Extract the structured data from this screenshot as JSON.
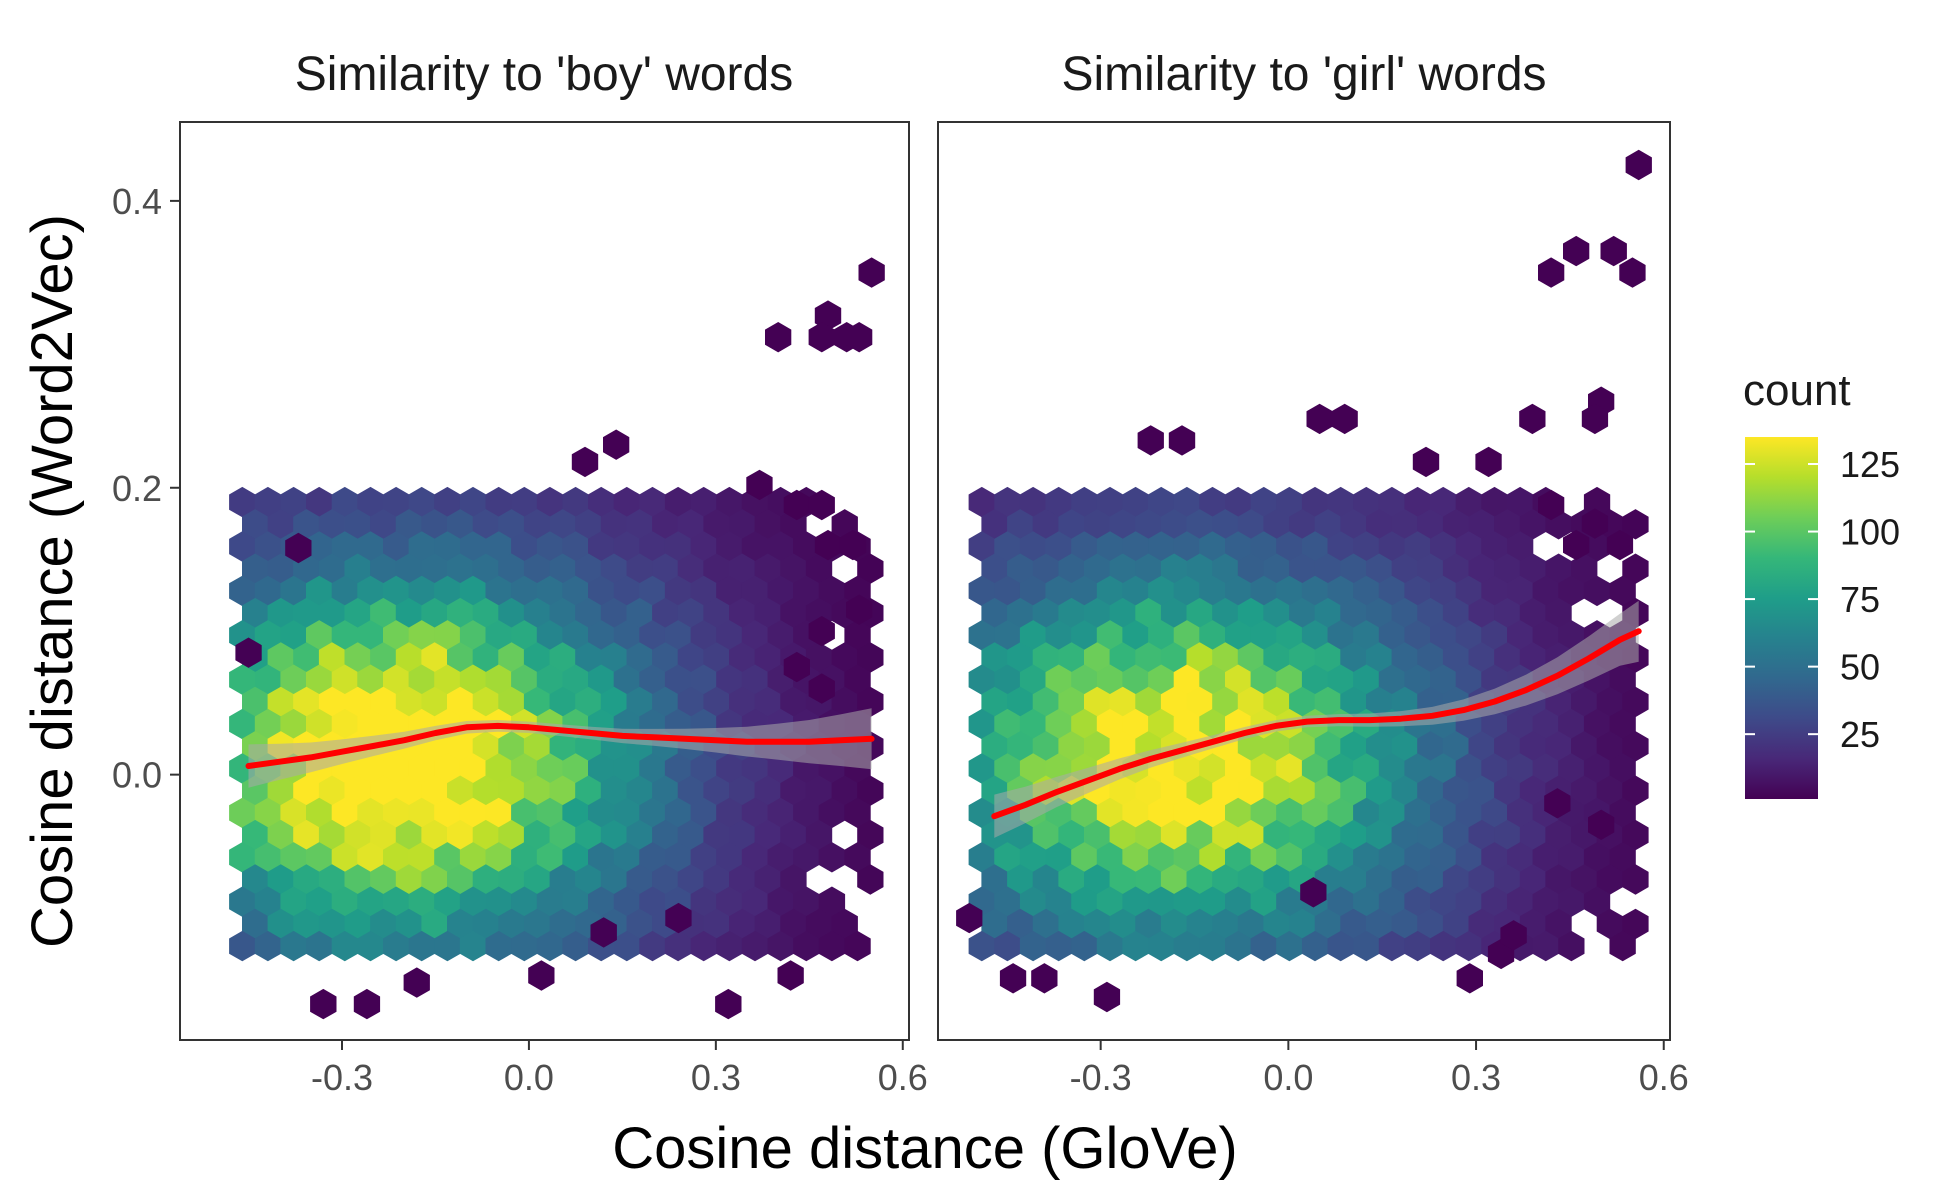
{
  "figure": {
    "xlabel": "Cosine distance (GloVe)",
    "ylabel": "Cosine distance (Word2Vec)"
  },
  "legend": {
    "title": "count",
    "position": "right",
    "range": [
      1,
      135
    ],
    "ticks": [
      25,
      50,
      75,
      100,
      125
    ],
    "ticks_text": [
      "25",
      "50",
      "75",
      "100",
      "125"
    ],
    "palette": [
      "#440154",
      "#482878",
      "#3e4a89",
      "#31688e",
      "#26828e",
      "#1f9e89",
      "#35b779",
      "#6ece58",
      "#b5de2b",
      "#fde725"
    ]
  },
  "chart_data": [
    {
      "type": "hexbin",
      "title": "Similarity to 'boy' words",
      "xlabel": "Cosine distance (GloVe)",
      "ylabel": "Cosine distance (Word2Vec)",
      "xlim": [
        -0.56,
        0.61
      ],
      "ylim": [
        -0.185,
        0.455
      ],
      "x_ticks": [
        -0.3,
        0.0,
        0.3,
        0.6
      ],
      "x_ticks_text": [
        "-0.3",
        "0.0",
        "0.3",
        "0.6"
      ],
      "y_ticks": [
        0.0,
        0.2,
        0.4
      ],
      "y_ticks_text": [
        "0.0",
        "0.2",
        "0.4"
      ],
      "grid": false,
      "density_center": [
        -0.21,
        0.01
      ],
      "density_peak": 125,
      "point_cloud_x_range": [
        -0.46,
        0.56
      ],
      "point_cloud_y_range": [
        -0.14,
        0.35
      ],
      "smooth_line_color": "#ff0000",
      "smooth_line": {
        "x": [
          -0.45,
          -0.4,
          -0.35,
          -0.3,
          -0.25,
          -0.2,
          -0.15,
          -0.1,
          -0.05,
          0.0,
          0.05,
          0.1,
          0.15,
          0.2,
          0.25,
          0.3,
          0.35,
          0.4,
          0.45,
          0.5,
          0.55
        ],
        "y": [
          0.006,
          0.009,
          0.012,
          0.016,
          0.02,
          0.024,
          0.029,
          0.033,
          0.034,
          0.033,
          0.031,
          0.029,
          0.027,
          0.026,
          0.025,
          0.024,
          0.023,
          0.023,
          0.023,
          0.024,
          0.025
        ]
      },
      "outliers": [
        {
          "x": 0.55,
          "y": 0.35
        },
        {
          "x": 0.4,
          "y": 0.305
        },
        {
          "x": 0.48,
          "y": 0.32
        },
        {
          "x": 0.47,
          "y": 0.305
        },
        {
          "x": 0.51,
          "y": 0.305
        },
        {
          "x": 0.53,
          "y": 0.305
        },
        {
          "x": 0.14,
          "y": 0.23
        },
        {
          "x": 0.09,
          "y": 0.218
        },
        {
          "x": 0.37,
          "y": 0.202
        },
        {
          "x": 0.43,
          "y": 0.188
        },
        {
          "x": 0.47,
          "y": 0.188
        },
        {
          "x": 0.48,
          "y": 0.16
        },
        {
          "x": 0.52,
          "y": 0.16
        },
        {
          "x": 0.53,
          "y": 0.115
        },
        {
          "x": 0.47,
          "y": 0.1
        },
        {
          "x": 0.43,
          "y": 0.075
        },
        {
          "x": 0.47,
          "y": 0.06
        },
        {
          "x": -0.45,
          "y": 0.085
        },
        {
          "x": -0.37,
          "y": 0.158
        },
        {
          "x": -0.33,
          "y": -0.16
        },
        {
          "x": -0.26,
          "y": -0.16
        },
        {
          "x": 0.02,
          "y": -0.14
        },
        {
          "x": 0.12,
          "y": -0.11
        },
        {
          "x": 0.32,
          "y": -0.16
        },
        {
          "x": 0.42,
          "y": -0.14
        },
        {
          "x": 0.24,
          "y": -0.1
        },
        {
          "x": -0.18,
          "y": -0.145
        }
      ]
    },
    {
      "type": "hexbin",
      "title": "Similarity to 'girl' words",
      "xlabel": "Cosine distance (GloVe)",
      "ylabel": "Cosine distance (Word2Vec)",
      "xlim": [
        -0.56,
        0.61
      ],
      "ylim": [
        -0.185,
        0.455
      ],
      "x_ticks": [
        -0.3,
        0.0,
        0.3,
        0.6
      ],
      "x_ticks_text": [
        "-0.3",
        "0.0",
        "0.3",
        "0.6"
      ],
      "y_ticks": [
        0.0,
        0.2,
        0.4
      ],
      "y_ticks_text": [
        "0.0",
        "0.2",
        "0.4"
      ],
      "grid": false,
      "density_center": [
        -0.18,
        0.01
      ],
      "density_peak": 110,
      "point_cloud_x_range": [
        -0.49,
        0.56
      ],
      "point_cloud_y_range": [
        -0.16,
        0.42
      ],
      "smooth_line_color": "#ff0000",
      "smooth_line": {
        "x": [
          -0.47,
          -0.42,
          -0.37,
          -0.32,
          -0.27,
          -0.22,
          -0.17,
          -0.12,
          -0.07,
          -0.02,
          0.03,
          0.08,
          0.13,
          0.18,
          0.23,
          0.28,
          0.33,
          0.38,
          0.43,
          0.48,
          0.53,
          0.56
        ],
        "y": [
          -0.029,
          -0.021,
          -0.012,
          -0.004,
          0.004,
          0.011,
          0.017,
          0.023,
          0.029,
          0.034,
          0.037,
          0.038,
          0.038,
          0.039,
          0.041,
          0.045,
          0.051,
          0.059,
          0.069,
          0.081,
          0.094,
          0.1
        ]
      },
      "outliers": [
        {
          "x": 0.56,
          "y": 0.425
        },
        {
          "x": 0.52,
          "y": 0.365
        },
        {
          "x": 0.46,
          "y": 0.365
        },
        {
          "x": 0.42,
          "y": 0.35
        },
        {
          "x": 0.55,
          "y": 0.35
        },
        {
          "x": 0.5,
          "y": 0.26
        },
        {
          "x": 0.39,
          "y": 0.248
        },
        {
          "x": 0.49,
          "y": 0.248
        },
        {
          "x": -0.22,
          "y": 0.233
        },
        {
          "x": -0.17,
          "y": 0.233
        },
        {
          "x": 0.05,
          "y": 0.248
        },
        {
          "x": 0.09,
          "y": 0.248
        },
        {
          "x": 0.22,
          "y": 0.218
        },
        {
          "x": 0.32,
          "y": 0.218
        },
        {
          "x": 0.42,
          "y": 0.188
        },
        {
          "x": 0.49,
          "y": 0.175
        },
        {
          "x": 0.46,
          "y": 0.16
        },
        {
          "x": 0.53,
          "y": 0.16
        },
        {
          "x": -0.51,
          "y": -0.1
        },
        {
          "x": -0.44,
          "y": -0.142
        },
        {
          "x": -0.39,
          "y": -0.142
        },
        {
          "x": -0.29,
          "y": -0.155
        },
        {
          "x": 0.04,
          "y": -0.082
        },
        {
          "x": 0.29,
          "y": -0.142
        },
        {
          "x": 0.34,
          "y": -0.125
        },
        {
          "x": 0.36,
          "y": -0.112
        },
        {
          "x": 0.43,
          "y": -0.02
        },
        {
          "x": 0.5,
          "y": -0.035
        }
      ]
    }
  ]
}
